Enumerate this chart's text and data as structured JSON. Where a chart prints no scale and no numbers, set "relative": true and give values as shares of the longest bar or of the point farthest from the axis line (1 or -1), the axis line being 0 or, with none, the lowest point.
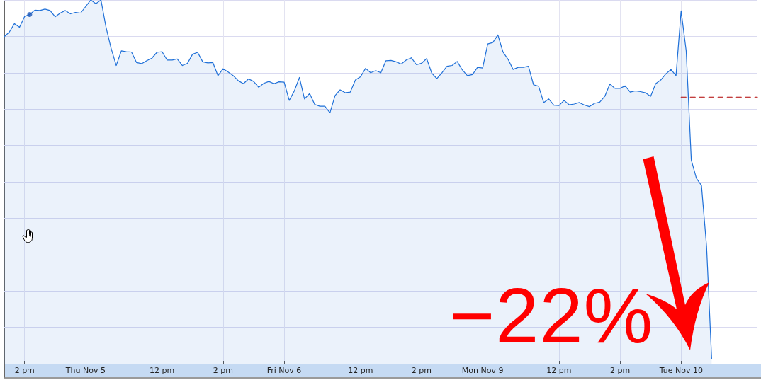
{
  "chart_data": {
    "type": "area",
    "relative": true,
    "grid": true,
    "marker": "none",
    "categories": [
      null,
      null,
      null,
      null,
      "2 pm",
      null,
      null,
      null,
      null,
      null,
      null,
      null,
      null,
      null,
      null,
      null,
      "Thu Nov 5",
      null,
      null,
      null,
      null,
      null,
      null,
      null,
      null,
      null,
      null,
      null,
      null,
      null,
      null,
      "12 pm",
      null,
      null,
      null,
      null,
      null,
      null,
      null,
      null,
      null,
      null,
      null,
      "2 pm",
      null,
      null,
      null,
      null,
      null,
      null,
      null,
      null,
      null,
      null,
      null,
      "Fri Nov 6",
      null,
      null,
      null,
      null,
      null,
      null,
      null,
      null,
      null,
      null,
      null,
      null,
      null,
      null,
      "12 pm",
      null,
      null,
      null,
      null,
      null,
      null,
      null,
      null,
      null,
      null,
      null,
      "2 pm",
      null,
      null,
      null,
      null,
      null,
      null,
      null,
      null,
      null,
      null,
      null,
      "Mon Nov 9",
      null,
      null,
      null,
      null,
      null,
      null,
      null,
      null,
      null,
      null,
      null,
      null,
      null,
      null,
      "12 pm",
      null,
      null,
      null,
      null,
      null,
      null,
      null,
      null,
      null,
      null,
      null,
      "2 pm",
      null,
      null,
      null,
      null,
      null,
      null,
      null,
      null,
      null,
      null,
      null,
      "Tue Nov 10",
      null,
      null,
      null,
      null,
      null,
      null,
      null,
      null,
      null,
      null,
      null,
      null,
      null,
      null,
      null
    ],
    "annotations": [
      "−22%"
    ],
    "series": [
      {
        "color": "#1f70d8",
        "values": [
          0.899,
          0.912,
          0.935,
          0.925,
          0.955,
          0.96,
          0.972,
          0.971,
          0.975,
          0.971,
          0.954,
          0.964,
          0.971,
          0.962,
          0.966,
          0.964,
          0.982,
          1.0,
          0.99,
          1.0,
          0.925,
          0.867,
          0.82,
          0.86,
          0.858,
          0.857,
          0.828,
          0.825,
          0.833,
          0.84,
          0.856,
          0.858,
          0.835,
          0.835,
          0.838,
          0.82,
          0.826,
          0.851,
          0.856,
          0.83,
          0.827,
          0.828,
          0.792,
          0.811,
          0.802,
          0.792,
          0.778,
          0.77,
          0.783,
          0.776,
          0.76,
          0.771,
          0.776,
          0.77,
          0.775,
          0.774,
          0.724,
          0.75,
          0.787,
          0.728,
          0.743,
          0.713,
          0.708,
          0.708,
          0.69,
          0.737,
          0.753,
          0.745,
          0.747,
          0.78,
          0.789,
          0.812,
          0.8,
          0.806,
          0.8,
          0.833,
          0.834,
          0.83,
          0.824,
          0.835,
          0.841,
          0.822,
          0.826,
          0.839,
          0.799,
          0.784,
          0.8,
          0.818,
          0.82,
          0.831,
          0.808,
          0.792,
          0.795,
          0.815,
          0.813,
          0.879,
          0.883,
          0.904,
          0.857,
          0.837,
          0.809,
          0.815,
          0.815,
          0.818,
          0.767,
          0.763,
          0.718,
          0.728,
          0.711,
          0.71,
          0.724,
          0.712,
          0.714,
          0.718,
          0.711,
          0.707,
          0.716,
          0.719,
          0.735,
          0.769,
          0.757,
          0.757,
          0.764,
          0.747,
          0.75,
          0.748,
          0.745,
          0.735,
          0.77,
          0.78,
          0.797,
          0.809,
          0.792,
          0.97,
          0.86,
          0.56,
          0.51,
          0.49,
          0.323,
          0.014,
          null,
          null,
          null,
          null,
          null,
          null,
          null,
          null,
          null
        ]
      },
      {
        "type": "scatter",
        "color": "#1a56b8",
        "marker": "circle",
        "values": [
          null,
          null,
          null,
          null,
          null,
          0.96,
          null,
          null,
          null,
          null,
          null,
          null,
          null,
          null,
          null,
          null,
          null,
          null,
          null,
          null,
          null,
          null,
          null,
          null,
          null,
          null,
          null,
          null,
          null,
          null,
          null,
          null,
          null,
          null,
          null,
          null,
          null,
          null,
          null,
          null,
          null,
          null,
          null,
          null,
          null,
          null,
          null,
          null,
          null,
          null,
          null,
          null,
          null,
          null,
          null,
          null,
          null,
          null,
          null,
          null,
          null,
          null,
          null,
          null,
          null,
          null,
          null,
          null,
          null,
          null,
          null,
          null,
          null,
          null,
          null,
          null,
          null,
          null,
          null,
          null,
          null,
          null,
          null,
          null,
          null,
          null,
          null,
          null,
          null,
          null,
          null,
          null,
          null,
          null,
          null,
          null,
          null,
          null,
          null,
          null,
          null,
          null,
          null,
          null,
          null,
          null,
          null,
          null,
          null,
          null,
          null,
          null,
          null,
          null,
          null,
          null,
          null,
          null,
          null,
          null,
          null,
          null,
          null,
          null,
          null,
          null,
          null,
          null,
          null,
          null,
          null,
          null,
          null,
          null,
          null,
          null,
          null,
          null,
          null,
          null,
          null,
          null,
          null,
          null,
          null,
          null,
          null,
          null,
          null
        ]
      },
      {
        "type": "line",
        "color": "#b00000",
        "line_style": "dashed",
        "values": [
          null,
          null,
          null,
          null,
          null,
          null,
          null,
          null,
          null,
          null,
          null,
          null,
          null,
          null,
          null,
          null,
          null,
          null,
          null,
          null,
          null,
          null,
          null,
          null,
          null,
          null,
          null,
          null,
          null,
          null,
          null,
          null,
          null,
          null,
          null,
          null,
          null,
          null,
          null,
          null,
          null,
          null,
          null,
          null,
          null,
          null,
          null,
          null,
          null,
          null,
          null,
          null,
          null,
          null,
          null,
          null,
          null,
          null,
          null,
          null,
          null,
          null,
          null,
          null,
          null,
          null,
          null,
          null,
          null,
          null,
          null,
          null,
          null,
          null,
          null,
          null,
          null,
          null,
          null,
          null,
          null,
          null,
          null,
          null,
          null,
          null,
          null,
          null,
          null,
          null,
          null,
          null,
          null,
          null,
          null,
          null,
          null,
          null,
          null,
          null,
          null,
          null,
          null,
          null,
          null,
          null,
          null,
          null,
          null,
          null,
          null,
          null,
          null,
          null,
          null,
          null,
          null,
          null,
          null,
          null,
          null,
          null,
          null,
          null,
          null,
          null,
          null,
          null,
          null,
          null,
          null,
          null,
          null,
          0.733,
          0.733,
          0.733,
          0.733,
          0.733,
          0.733,
          0.733,
          0.733,
          0.733,
          0.733,
          0.733,
          0.733,
          0.733,
          0.733,
          0.733,
          0.733
        ]
      }
    ]
  }
}
